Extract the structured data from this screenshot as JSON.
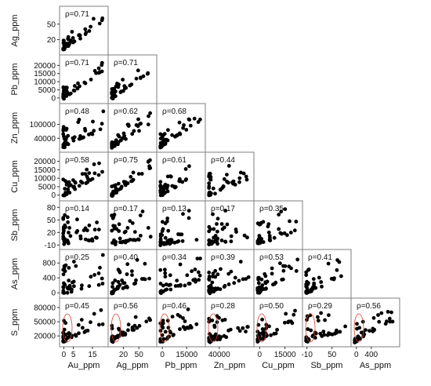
{
  "chart_data": {
    "type": "scatter",
    "variables": [
      "Au_ppm",
      "Ag_ppm",
      "Pb_ppm",
      "Zn_ppm",
      "Cu_ppm",
      "Sb_ppm",
      "As_ppm",
      "S_ppm"
    ],
    "axis_ranges": {
      "Au_ppm": [
        -1,
        22
      ],
      "Ag_ppm": [
        -5,
        80
      ],
      "Pb_ppm": [
        -2000,
        25000
      ],
      "Zn_ppm": [
        -10000,
        180000
      ],
      "Cu_ppm": [
        -2000,
        24000
      ],
      "Sb_ppm": [
        -15,
        90
      ],
      "As_ppm": [
        -80,
        1100
      ],
      "S_ppm": [
        2000,
        95000
      ]
    },
    "x_ticks": {
      "Au_ppm": [
        "0",
        "5",
        "15"
      ],
      "Ag_ppm": [
        "20",
        "50"
      ],
      "Pb_ppm": [
        "0",
        "15000"
      ],
      "Zn_ppm": [
        "40000"
      ],
      "Cu_ppm": [
        "0",
        "15000"
      ],
      "Sb_ppm": [
        "-10",
        "50"
      ],
      "As_ppm": [
        "0",
        "400"
      ]
    },
    "y_ticks": {
      "Ag_ppm": [
        "50",
        "20"
      ],
      "Pb_ppm": [
        "20000",
        "15000",
        "10000",
        "5000",
        "0"
      ],
      "Zn_ppm": [
        "100000",
        "40000"
      ],
      "Cu_ppm": [
        "20000",
        "15000",
        "10000",
        "5000",
        "0"
      ],
      "Sb_ppm": [
        "80",
        "50",
        "20",
        "-10"
      ],
      "As_ppm": [
        "800",
        "400",
        "0"
      ],
      "S_ppm": [
        "80000",
        "50000",
        "20000"
      ]
    },
    "correlations": [
      {
        "x": "Au_ppm",
        "y": "Ag_ppm",
        "label": "ρ=0.71"
      },
      {
        "x": "Au_ppm",
        "y": "Pb_ppm",
        "label": "ρ=0.71"
      },
      {
        "x": "Ag_ppm",
        "y": "Pb_ppm",
        "label": "ρ=0.71"
      },
      {
        "x": "Au_ppm",
        "y": "Zn_ppm",
        "label": "ρ=0.48"
      },
      {
        "x": "Ag_ppm",
        "y": "Zn_ppm",
        "label": "ρ=0.62"
      },
      {
        "x": "Pb_ppm",
        "y": "Zn_ppm",
        "label": "ρ=0.68"
      },
      {
        "x": "Au_ppm",
        "y": "Cu_ppm",
        "label": "ρ=0.58"
      },
      {
        "x": "Ag_ppm",
        "y": "Cu_ppm",
        "label": "ρ=0.75"
      },
      {
        "x": "Pb_ppm",
        "y": "Cu_ppm",
        "label": "ρ=0.61"
      },
      {
        "x": "Zn_ppm",
        "y": "Cu_ppm",
        "label": "ρ=0.44"
      },
      {
        "x": "Au_ppm",
        "y": "Sb_ppm",
        "label": "ρ=0.14"
      },
      {
        "x": "Ag_ppm",
        "y": "Sb_ppm",
        "label": "ρ=0.17"
      },
      {
        "x": "Pb_ppm",
        "y": "Sb_ppm",
        "label": "ρ=0.13"
      },
      {
        "x": "Zn_ppm",
        "y": "Sb_ppm",
        "label": "ρ=0.17"
      },
      {
        "x": "Cu_ppm",
        "y": "Sb_ppm",
        "label": "ρ=0.35"
      },
      {
        "x": "Au_ppm",
        "y": "As_ppm",
        "label": "ρ=0.25"
      },
      {
        "x": "Ag_ppm",
        "y": "As_ppm",
        "label": "ρ=0.40"
      },
      {
        "x": "Pb_ppm",
        "y": "As_ppm",
        "label": "ρ=0.34"
      },
      {
        "x": "Zn_ppm",
        "y": "As_ppm",
        "label": "ρ=0.39"
      },
      {
        "x": "Cu_ppm",
        "y": "As_ppm",
        "label": "ρ=0.53"
      },
      {
        "x": "Sb_ppm",
        "y": "As_ppm",
        "label": "ρ=0.41"
      },
      {
        "x": "Au_ppm",
        "y": "S_ppm",
        "label": "ρ=0.45"
      },
      {
        "x": "Ag_ppm",
        "y": "S_ppm",
        "label": "ρ=0.56"
      },
      {
        "x": "Pb_ppm",
        "y": "S_ppm",
        "label": "ρ=0.46"
      },
      {
        "x": "Zn_ppm",
        "y": "S_ppm",
        "label": "ρ=0.28"
      },
      {
        "x": "Cu_ppm",
        "y": "S_ppm",
        "label": "ρ=0.50"
      },
      {
        "x": "Sb_ppm",
        "y": "S_ppm",
        "label": "ρ=0.29"
      },
      {
        "x": "As_ppm",
        "y": "S_ppm",
        "label": "ρ=0.56"
      }
    ],
    "point_color": "#000000",
    "ellipse_color": "#d9412b",
    "grid": false,
    "legend": "none"
  }
}
